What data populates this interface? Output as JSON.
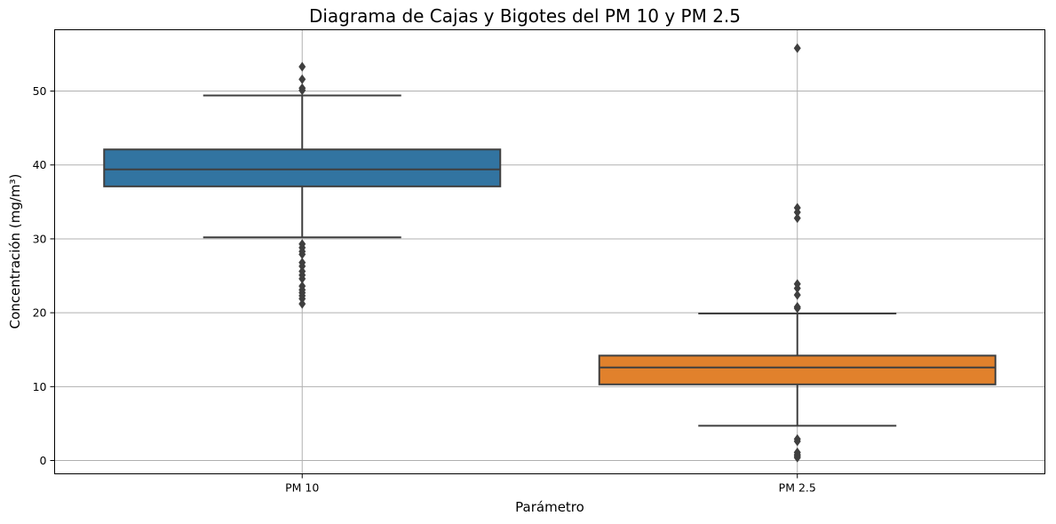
{
  "chart_data": {
    "type": "box",
    "title": "Diagrama de Cajas y Bigotes del PM 10 y PM 2.5",
    "xlabel": "Parámetro",
    "ylabel": "Concentración (mg/m³)",
    "ylim": [
      -1.8,
      58.3
    ],
    "yticks": [
      0,
      10,
      20,
      30,
      40,
      50
    ],
    "grid": true,
    "categories": [
      "PM 10",
      "PM 2.5"
    ],
    "series": [
      {
        "category": "PM 10",
        "color": "#3274a1",
        "whisker_low": 30.2,
        "q1": 37.1,
        "median": 39.4,
        "q3": 42.1,
        "whisker_high": 49.4,
        "outliers": [
          53.3,
          51.6,
          50.4,
          50.1,
          29.3,
          28.8,
          28.3,
          27.9,
          26.8,
          26.3,
          25.6,
          25.1,
          24.6,
          23.6,
          23.1,
          22.7,
          22.3,
          21.9,
          21.2
        ]
      },
      {
        "category": "PM 2.5",
        "color": "#e1812c",
        "whisker_low": 4.7,
        "q1": 10.3,
        "median": 12.6,
        "q3": 14.2,
        "whisker_high": 19.9,
        "outliers": [
          55.8,
          34.2,
          33.6,
          32.8,
          23.9,
          23.3,
          22.4,
          20.8,
          20.6,
          2.9,
          2.6,
          1.1,
          0.8,
          0.6,
          0.4
        ]
      }
    ]
  }
}
